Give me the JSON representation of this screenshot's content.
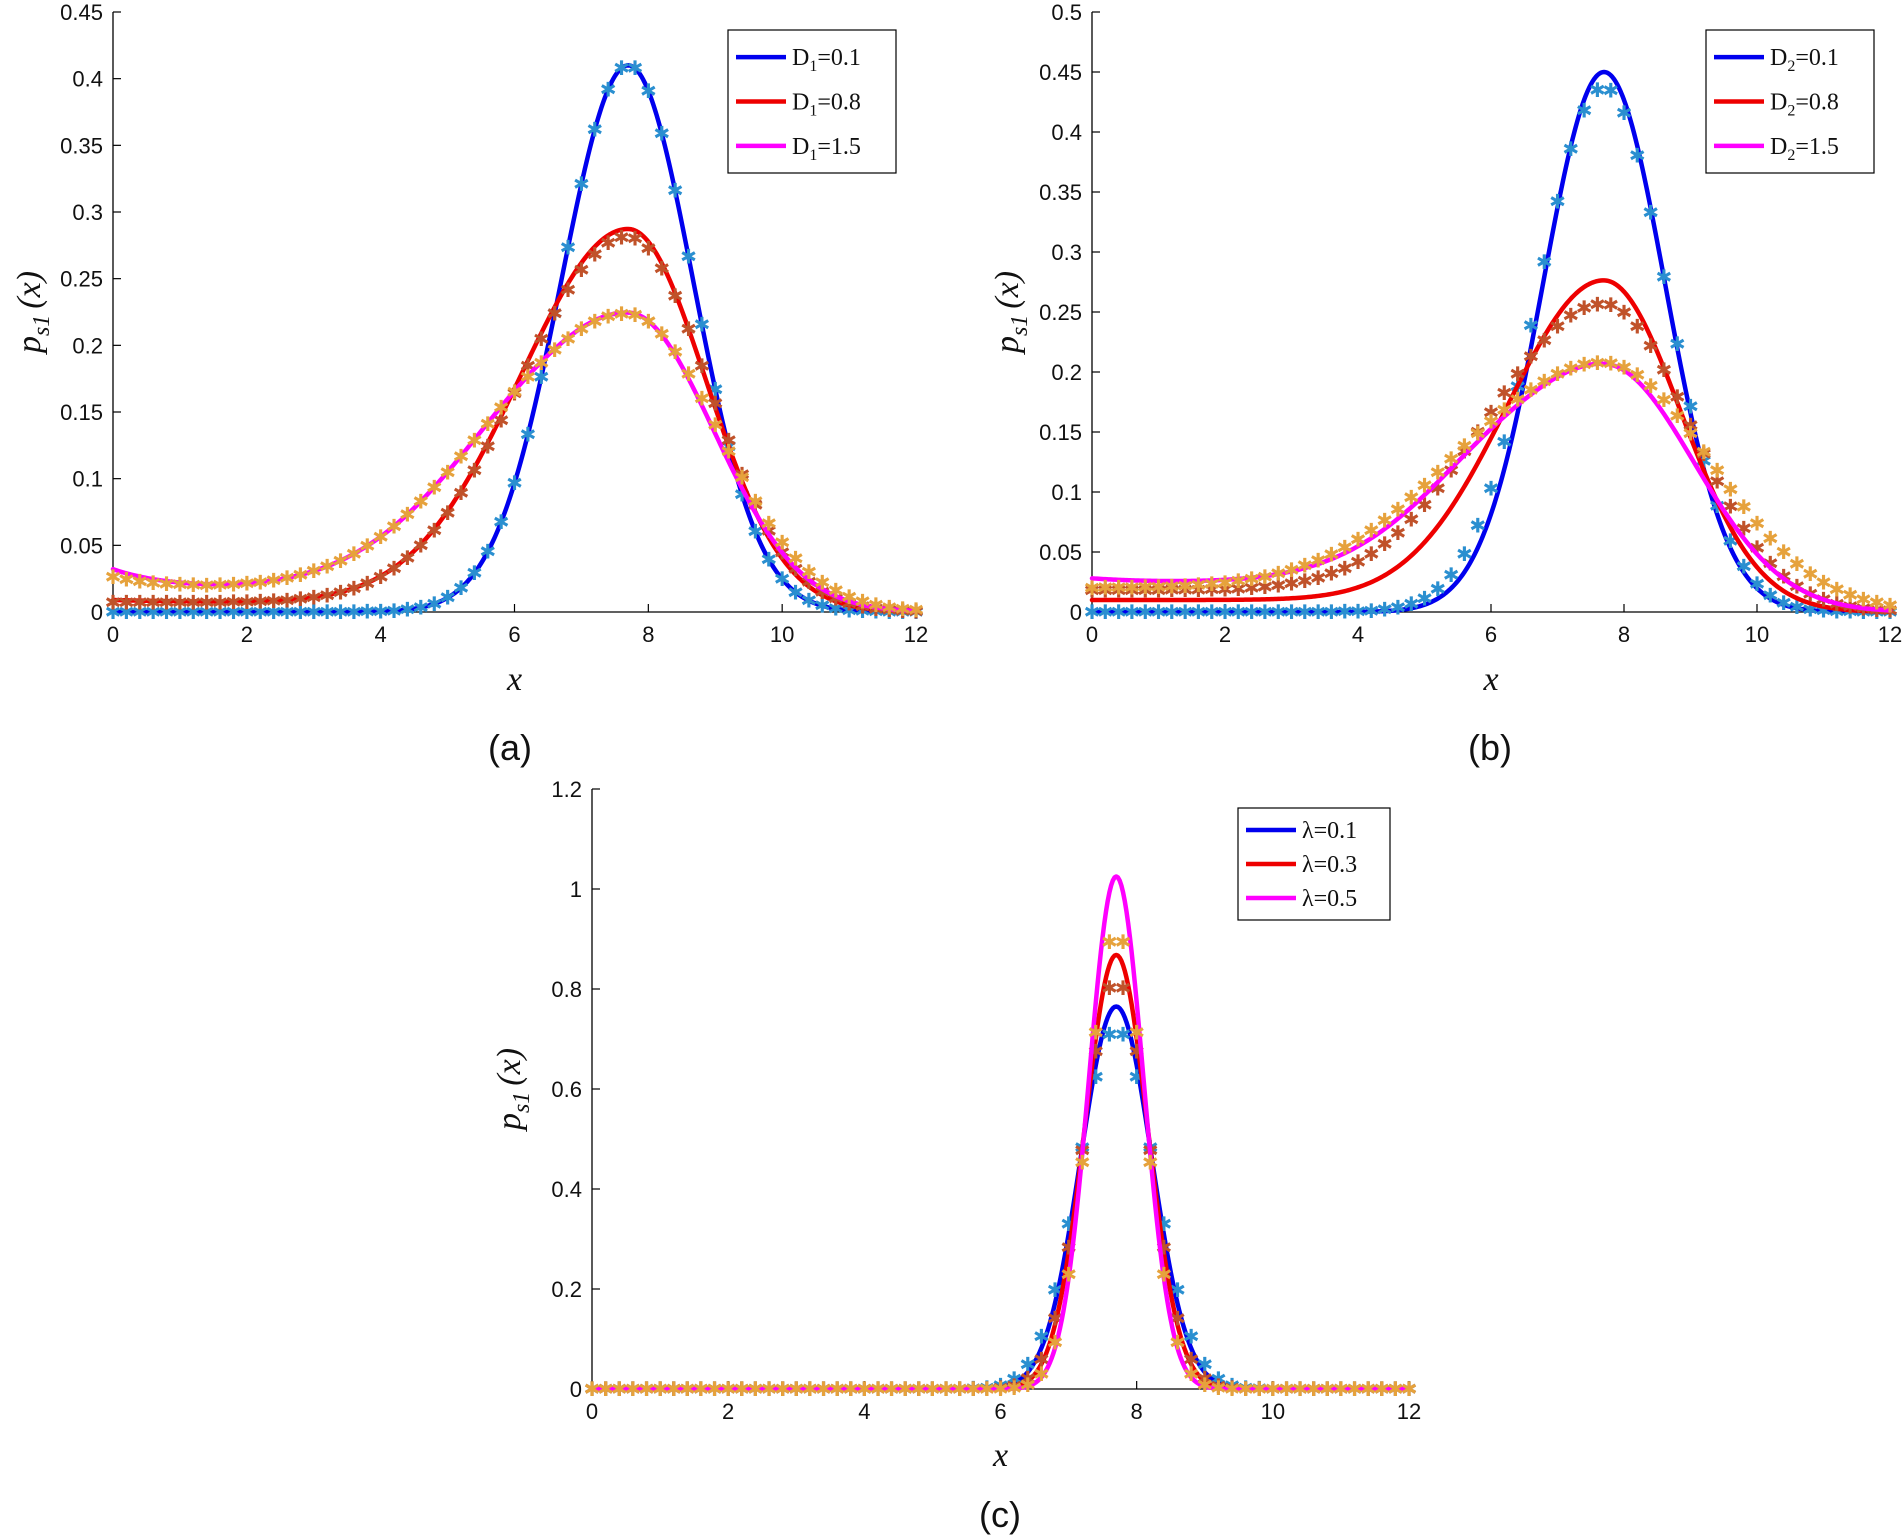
{
  "chart_data": [
    {
      "id": "a",
      "type": "line",
      "panel_label": "(a)",
      "xlabel": "x",
      "ylabel_main": "p",
      "ylabel_sub": "s1",
      "ylabel_arg": "(x)",
      "xlim": [
        0,
        12
      ],
      "ylim": [
        0,
        0.45
      ],
      "xticks": [
        0,
        2,
        4,
        6,
        8,
        10,
        12
      ],
      "yticks": [
        0,
        0.05,
        0.1,
        0.15,
        0.2,
        0.25,
        0.3,
        0.35,
        0.4,
        0.45
      ],
      "ytick_labels": [
        "0",
        "0.05",
        "0.1",
        "0.15",
        "0.2",
        "0.25",
        "0.3",
        "0.35",
        "0.4",
        "0.45"
      ],
      "legend_position": "top-right",
      "series": [
        {
          "legend_main": "D",
          "legend_sub": "1",
          "legend_value": "=0.1",
          "color": "#0000ee",
          "marker_color": "#2a8fd0",
          "curve": {
            "peak": 0.41,
            "mu": 7.7,
            "sl": 1.0,
            "sr": 0.97,
            "tail_a": 0.0,
            "tail_b": 0.0,
            "tail_c": 0.0
          },
          "samples": {
            "peak": 0.41,
            "mu": 7.7,
            "sl": 1.0,
            "sr": 0.97,
            "tail_a": 0.0,
            "tail_b": 0.0,
            "tail_c": 0.0
          }
        },
        {
          "legend_main": "D",
          "legend_sub": "1",
          "legend_value": "=0.8",
          "color": "#ee0000",
          "marker_color": "#c0522a",
          "curve": {
            "peak": 0.287,
            "mu": 7.7,
            "sl": 1.6,
            "sr": 1.16,
            "tail_a": 0.009,
            "tail_b": -0.002,
            "tail_c": 1.5
          },
          "samples": {
            "peak": 0.281,
            "mu": 7.7,
            "sl": 1.6,
            "sr": 1.2,
            "tail_a": 0.007,
            "tail_b": 0.0,
            "tail_c": 1.5
          }
        },
        {
          "legend_main": "D",
          "legend_sub": "1",
          "legend_value": "=1.5",
          "color": "#ff00ff",
          "marker_color": "#e6a23c",
          "curve": {
            "peak": 0.224,
            "mu": 7.7,
            "sl": 2.0,
            "sr": 1.28,
            "tail_a": 0.032,
            "tail_b": -0.016,
            "tail_c": 0.9
          },
          "samples": {
            "peak": 0.223,
            "mu": 7.7,
            "sl": 2.0,
            "sr": 1.35,
            "tail_a": 0.026,
            "tail_b": -0.01,
            "tail_c": 1.0
          }
        }
      ]
    },
    {
      "id": "b",
      "type": "line",
      "panel_label": "(b)",
      "xlabel": "x",
      "ylabel_main": "p",
      "ylabel_sub": "s1",
      "ylabel_arg": "(x)",
      "xlim": [
        0,
        12
      ],
      "ylim": [
        0,
        0.5
      ],
      "xticks": [
        0,
        2,
        4,
        6,
        8,
        10,
        12
      ],
      "yticks": [
        0,
        0.05,
        0.1,
        0.15,
        0.2,
        0.25,
        0.3,
        0.35,
        0.4,
        0.45,
        0.5
      ],
      "ytick_labels": [
        "0",
        "0.05",
        "0.1",
        "0.15",
        "0.2",
        "0.25",
        "0.3",
        "0.35",
        "0.4",
        "0.45",
        "0.5"
      ],
      "legend_position": "top-right",
      "series": [
        {
          "legend_main": "D",
          "legend_sub": "2",
          "legend_value": "=0.1",
          "color": "#0000ee",
          "marker_color": "#2a8fd0",
          "curve": {
            "peak": 0.45,
            "mu": 7.7,
            "sl": 0.92,
            "sr": 0.92,
            "tail_a": 0.0,
            "tail_b": 0.0,
            "tail_c": 0.0
          },
          "samples": {
            "peak": 0.437,
            "mu": 7.7,
            "sl": 1.0,
            "sr": 0.95,
            "tail_a": 0.0,
            "tail_b": 0.0,
            "tail_c": 0.0
          }
        },
        {
          "legend_main": "D",
          "legend_sub": "2",
          "legend_value": "=0.8",
          "color": "#ee0000",
          "marker_color": "#c0522a",
          "curve": {
            "peak": 0.276,
            "mu": 7.7,
            "sl": 1.45,
            "sr": 1.15,
            "tail_a": 0.01,
            "tail_b": 0.0,
            "tail_c": 1.0
          },
          "samples": {
            "peak": 0.256,
            "mu": 7.7,
            "sl": 1.7,
            "sr": 1.3,
            "tail_a": 0.018,
            "tail_b": 0.0,
            "tail_c": 1.0
          }
        },
        {
          "legend_main": "D",
          "legend_sub": "2",
          "legend_value": "=1.5",
          "color": "#ff00ff",
          "marker_color": "#e6a23c",
          "curve": {
            "peak": 0.206,
            "mu": 7.7,
            "sl": 1.9,
            "sr": 1.35,
            "tail_a": 0.028,
            "tail_b": -0.004,
            "tail_c": 1.0
          },
          "samples": {
            "peak": 0.207,
            "mu": 7.7,
            "sl": 2.05,
            "sr": 1.6,
            "tail_a": 0.02,
            "tail_b": 0.0,
            "tail_c": 1.0
          }
        }
      ]
    },
    {
      "id": "c",
      "type": "line",
      "panel_label": "(c)",
      "xlabel": "x",
      "ylabel_main": "p",
      "ylabel_sub": "s1",
      "ylabel_arg": "(x)",
      "xlim": [
        0,
        12
      ],
      "ylim": [
        0,
        1.2
      ],
      "xticks": [
        0,
        2,
        4,
        6,
        8,
        10,
        12
      ],
      "yticks": [
        0,
        0.2,
        0.4,
        0.6,
        0.8,
        1,
        1.2
      ],
      "ytick_labels": [
        "0",
        "0.2",
        "0.4",
        "0.6",
        "0.8",
        "1",
        "1.2"
      ],
      "legend_position": "top-right",
      "series": [
        {
          "legend_main": "λ",
          "legend_sub": "",
          "legend_value": "=0.1",
          "color": "#0000ee",
          "marker_color": "#2a8fd0",
          "curve": {
            "peak": 0.765,
            "mu": 7.7,
            "sl": 0.52,
            "sr": 0.52,
            "tail_a": 0.0,
            "tail_b": 0.0,
            "tail_c": 0.0
          },
          "samples": {
            "peak": 0.72,
            "mu": 7.7,
            "sl": 0.56,
            "sr": 0.56,
            "tail_a": 0.0,
            "tail_b": 0.0,
            "tail_c": 0.0
          }
        },
        {
          "legend_main": "λ",
          "legend_sub": "",
          "legend_value": "=0.3",
          "color": "#ee0000",
          "marker_color": "#c0522a",
          "curve": {
            "peak": 0.868,
            "mu": 7.7,
            "sl": 0.46,
            "sr": 0.46,
            "tail_a": 0.0,
            "tail_b": 0.0,
            "tail_c": 0.0
          },
          "samples": {
            "peak": 0.82,
            "mu": 7.7,
            "sl": 0.48,
            "sr": 0.48,
            "tail_a": 0.0,
            "tail_b": 0.0,
            "tail_c": 0.0
          }
        },
        {
          "legend_main": "λ",
          "legend_sub": "",
          "legend_value": "=0.5",
          "color": "#ff00ff",
          "marker_color": "#e6a23c",
          "curve": {
            "peak": 1.025,
            "mu": 7.7,
            "sl": 0.4,
            "sr": 0.4,
            "tail_a": 0.0,
            "tail_b": 0.0,
            "tail_c": 0.0
          },
          "samples": {
            "peak": 0.92,
            "mu": 7.7,
            "sl": 0.42,
            "sr": 0.42,
            "tail_a": 0.0,
            "tail_b": 0.0,
            "tail_c": 0.0
          }
        }
      ]
    }
  ]
}
